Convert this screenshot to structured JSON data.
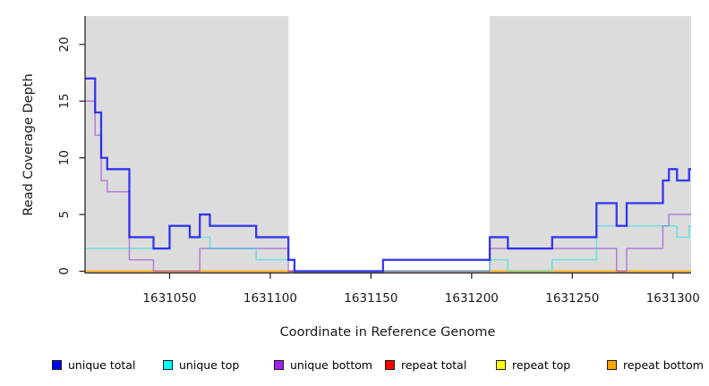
{
  "chart_data": {
    "type": "line",
    "subtype": "step-post",
    "title": "",
    "xlabel": "Coordinate in Reference Genome",
    "ylabel": "Read Coverage Depth",
    "xlim": [
      1631008,
      1631309
    ],
    "ylim": [
      0,
      22.5
    ],
    "x_ticks": [
      1631050,
      1631100,
      1631150,
      1631200,
      1631250,
      1631300
    ],
    "y_ticks": [
      0,
      5,
      10,
      15,
      20
    ],
    "grid": false,
    "legend_position": "bottom",
    "background_color": "#ffffff",
    "shaded_region_color": "#DCDCDC",
    "shaded_regions": [
      {
        "x0": 1631008,
        "x1": 1631109
      },
      {
        "x0": 1631209,
        "x1": 1631309
      }
    ],
    "draw_order": [
      "repeat top",
      "repeat bottom",
      "repeat total",
      "unique bottom",
      "unique top",
      "unique total"
    ],
    "series": [
      {
        "name": "unique total",
        "color": "#0000FF",
        "line_color": "rgba(25,25,240,0.85)",
        "line_width": 2.3,
        "xend": 1631309,
        "steps": [
          [
            1631008,
            17
          ],
          [
            1631013,
            14
          ],
          [
            1631016,
            10
          ],
          [
            1631019,
            9
          ],
          [
            1631030,
            3
          ],
          [
            1631042,
            2
          ],
          [
            1631050,
            4
          ],
          [
            1631060,
            3
          ],
          [
            1631065,
            5
          ],
          [
            1631070,
            4
          ],
          [
            1631093,
            3
          ],
          [
            1631109,
            1
          ],
          [
            1631112,
            0
          ],
          [
            1631156,
            1
          ],
          [
            1631209,
            3
          ],
          [
            1631218,
            2
          ],
          [
            1631240,
            3
          ],
          [
            1631262,
            6
          ],
          [
            1631272,
            4
          ],
          [
            1631277,
            6
          ],
          [
            1631295,
            8
          ],
          [
            1631298,
            9
          ],
          [
            1631302,
            8
          ],
          [
            1631308,
            9
          ]
        ]
      },
      {
        "name": "unique top",
        "color": "#00FFFF",
        "line_color": "rgba(0,225,225,0.5)",
        "line_width": 1.5,
        "xend": 1631309,
        "steps": [
          [
            1631008,
            2
          ],
          [
            1631050,
            4
          ],
          [
            1631060,
            3
          ],
          [
            1631070,
            2
          ],
          [
            1631093,
            1
          ],
          [
            1631112,
            0
          ],
          [
            1631209,
            1
          ],
          [
            1631218,
            0
          ],
          [
            1631240,
            1
          ],
          [
            1631262,
            4
          ],
          [
            1631302,
            3
          ],
          [
            1631308,
            4
          ]
        ]
      },
      {
        "name": "unique bottom",
        "color": "#A020F0",
        "line_color": "rgba(145,45,215,0.55)",
        "line_width": 1.5,
        "xend": 1631309,
        "steps": [
          [
            1631008,
            15
          ],
          [
            1631013,
            12
          ],
          [
            1631016,
            8
          ],
          [
            1631019,
            7
          ],
          [
            1631030,
            1
          ],
          [
            1631042,
            0
          ],
          [
            1631065,
            2
          ],
          [
            1631109,
            0
          ],
          [
            1631209,
            2
          ],
          [
            1631272,
            0
          ],
          [
            1631277,
            2
          ],
          [
            1631295,
            4
          ],
          [
            1631298,
            5
          ]
        ]
      },
      {
        "name": "repeat total",
        "color": "#FF0000",
        "line_color": "rgba(215,25,70,0.8)",
        "line_width": 1.4,
        "xend": 1631209,
        "steps": [
          [
            1631109,
            0
          ]
        ]
      },
      {
        "name": "repeat top",
        "color": "#FFFF00",
        "line_color": "rgba(255,255,0,1)",
        "line_width": 1.3,
        "xend": 1631209,
        "steps": [
          [
            1631109,
            0
          ]
        ]
      },
      {
        "name": "repeat bottom",
        "color": "#FFA500",
        "line_color": "rgba(255,165,0,1)",
        "line_width": 1.7,
        "xend": 1631309,
        "steps": [
          [
            1631008,
            0
          ]
        ]
      }
    ]
  },
  "legend": {
    "items": [
      {
        "label": "unique total",
        "color": "#0000FF"
      },
      {
        "label": "unique top",
        "color": "#00FFFF"
      },
      {
        "label": "unique bottom",
        "color": "#A020F0"
      },
      {
        "label": "repeat total",
        "color": "#FF0000"
      },
      {
        "label": "repeat top",
        "color": "#FFFF00"
      },
      {
        "label": "repeat bottom",
        "color": "#FFA500"
      }
    ]
  }
}
